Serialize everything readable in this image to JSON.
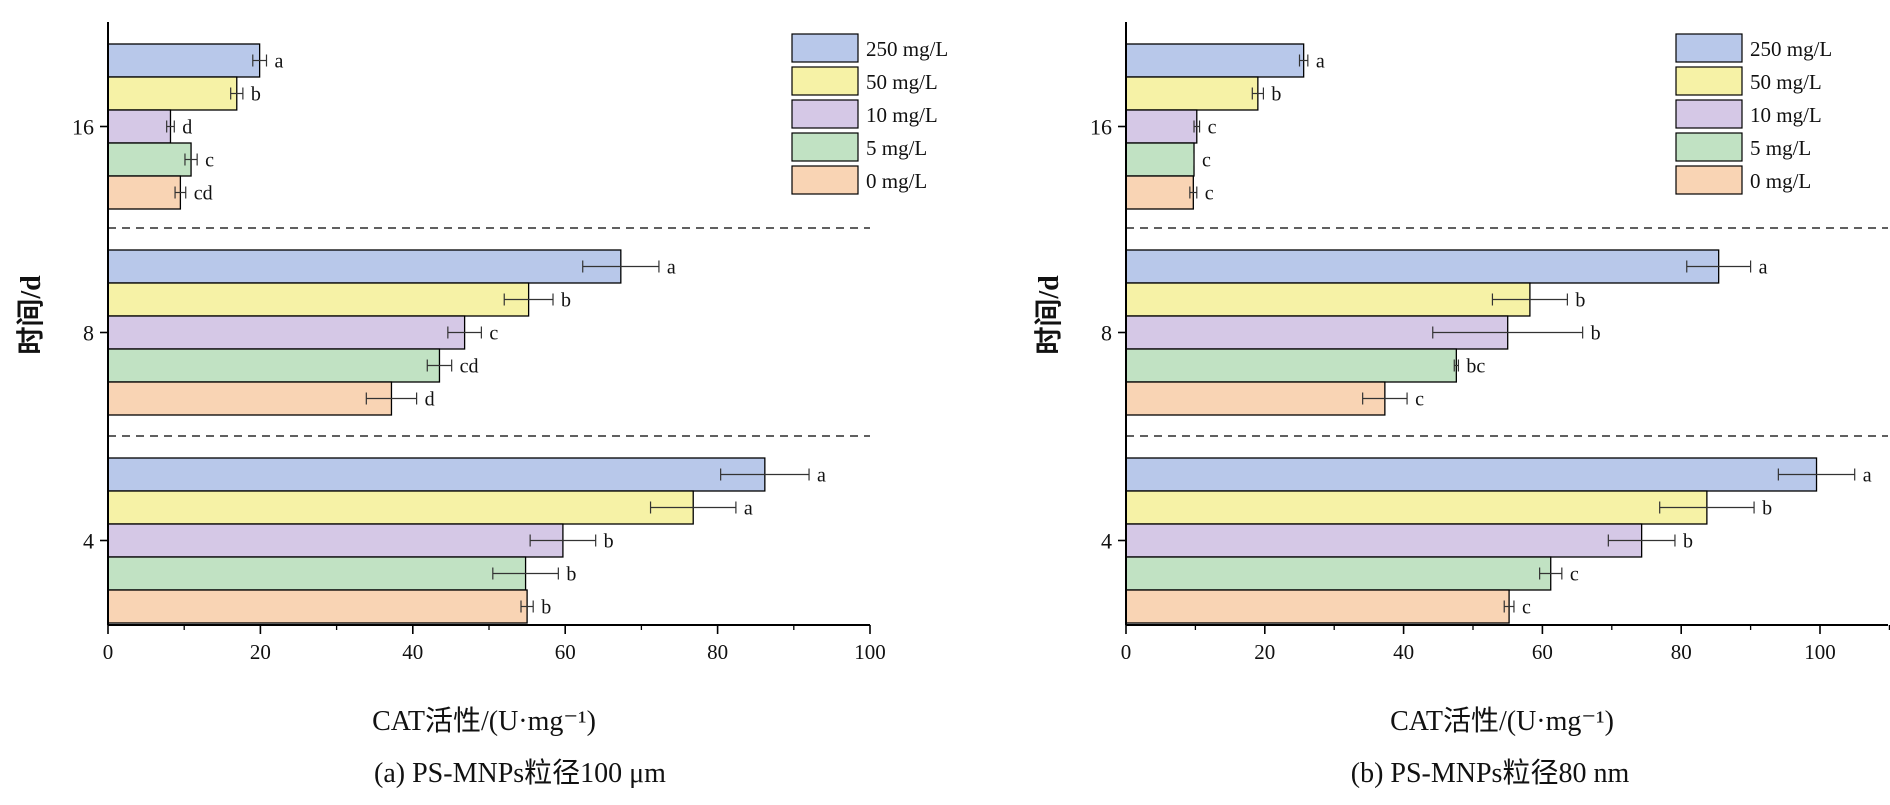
{
  "colors": {
    "250 mg/L": "#b8c8ea",
    "50 mg/L": "#f6f2a6",
    "10 mg/L": "#d5c8e6",
    "5 mg/L": "#c1e2c3",
    "0 mg/L": "#f9d4b4"
  },
  "chart_data": [
    {
      "type": "bar",
      "orientation": "horizontal",
      "title": "(a) PS-MNPs粒径100 μm",
      "xlabel": "CAT活性/(U·mg⁻¹)",
      "ylabel": "时间/d",
      "xlim": [
        0,
        100
      ],
      "xticks": [
        0,
        20,
        40,
        60,
        80,
        100
      ],
      "categories": [
        "4",
        "8",
        "16"
      ],
      "legend": {
        "position": "top-right",
        "entries": [
          "250 mg/L",
          "50 mg/L",
          "10 mg/L",
          "5 mg/L",
          "0 mg/L"
        ]
      },
      "series": [
        {
          "name": "250 mg/L",
          "values": [
            86.2,
            67.3,
            19.9
          ],
          "errors": [
            5.8,
            5.0,
            0.9
          ],
          "labels": [
            "a",
            "a",
            "a"
          ]
        },
        {
          "name": "50 mg/L",
          "values": [
            76.8,
            55.2,
            16.9
          ],
          "errors": [
            5.6,
            3.2,
            0.8
          ],
          "labels": [
            "a",
            "b",
            "b"
          ]
        },
        {
          "name": "10 mg/L",
          "values": [
            59.7,
            46.8,
            8.2
          ],
          "errors": [
            4.3,
            2.2,
            0.5
          ],
          "labels": [
            "b",
            "c",
            "d"
          ]
        },
        {
          "name": "5 mg/L",
          "values": [
            54.8,
            43.5,
            10.9
          ],
          "errors": [
            4.3,
            1.6,
            0.8
          ],
          "labels": [
            "b",
            "cd",
            "c"
          ]
        },
        {
          "name": "0 mg/L",
          "values": [
            55.0,
            37.2,
            9.5
          ],
          "errors": [
            0.8,
            3.3,
            0.7
          ],
          "labels": [
            "b",
            "d",
            "cd"
          ]
        }
      ]
    },
    {
      "type": "bar",
      "orientation": "horizontal",
      "title": "(b) PS-MNPs粒径80 nm",
      "xlabel": "CAT活性/(U·mg⁻¹)",
      "ylabel": "时间/d",
      "xlim": [
        0,
        110
      ],
      "xticks": [
        0,
        20,
        40,
        60,
        80,
        100
      ],
      "categories": [
        "4",
        "8",
        "16"
      ],
      "legend": {
        "position": "top-right",
        "entries": [
          "250 mg/L",
          "50 mg/L",
          "10 mg/L",
          "5 mg/L",
          "0 mg/L"
        ]
      },
      "series": [
        {
          "name": "250 mg/L",
          "values": [
            99.5,
            85.4,
            25.6
          ],
          "errors": [
            5.5,
            4.6,
            0.6
          ],
          "labels": [
            "a",
            "a",
            "a"
          ]
        },
        {
          "name": "50 mg/L",
          "values": [
            83.7,
            58.2,
            19.0
          ],
          "errors": [
            6.8,
            5.4,
            0.8
          ],
          "labels": [
            "b",
            "b",
            "b"
          ]
        },
        {
          "name": "10 mg/L",
          "values": [
            74.3,
            55.0,
            10.2
          ],
          "errors": [
            4.8,
            10.8,
            0.4
          ],
          "labels": [
            "b",
            "b",
            "c"
          ]
        },
        {
          "name": "5 mg/L",
          "values": [
            61.2,
            47.6,
            9.8
          ],
          "errors": [
            1.6,
            0.3,
            0.0
          ],
          "labels": [
            "c",
            "bc",
            "c"
          ]
        },
        {
          "name": "0 mg/L",
          "values": [
            55.2,
            37.3,
            9.7
          ],
          "errors": [
            0.7,
            3.2,
            0.5
          ],
          "labels": [
            "c",
            "c",
            "c"
          ]
        }
      ]
    }
  ]
}
